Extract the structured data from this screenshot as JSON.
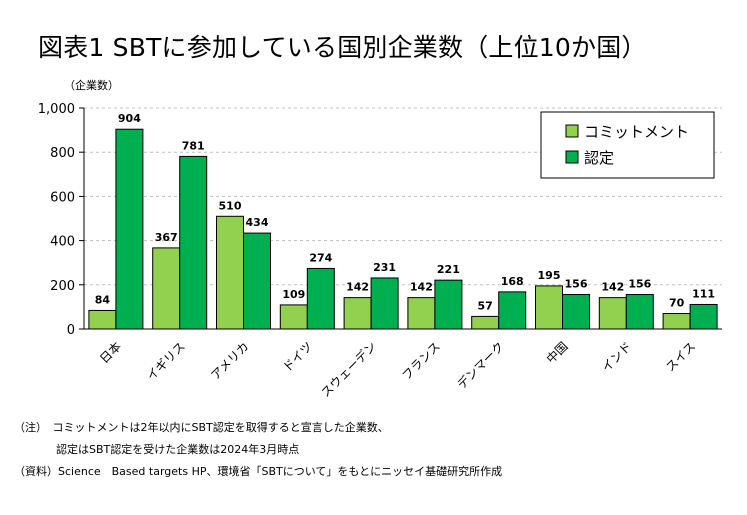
{
  "title": "図表1 SBTに参加している国別企業数（上位10か国）",
  "colors": {
    "commitment": "#92d050",
    "certified": "#00b050",
    "border": "#000000"
  },
  "chart_data": {
    "type": "bar",
    "ylabel": "（企業数）",
    "ylim": [
      0,
      1000
    ],
    "yticks": [
      0,
      200,
      400,
      600,
      800,
      1000
    ],
    "ytick_labels": [
      "0",
      "200",
      "400",
      "600",
      "800",
      "1,000"
    ],
    "grid": true,
    "legend_position": "top-right",
    "categories": [
      "日本",
      "イギリス",
      "アメリカ",
      "ドイツ",
      "スウェーデン",
      "フランス",
      "デンマーク",
      "中国",
      "インド",
      "スイス"
    ],
    "series": [
      {
        "name": "コミットメント",
        "values": [
          84,
          367,
          510,
          109,
          142,
          142,
          57,
          195,
          142,
          70
        ]
      },
      {
        "name": "認定",
        "values": [
          904,
          781,
          434,
          274,
          231,
          221,
          168,
          156,
          156,
          111
        ]
      }
    ]
  },
  "notes": [
    "（注）　コミットメントは2年以内にSBT認定を取得すると宣言した企業数、",
    "認定はSBT認定を受けた企業数は2024年3月時点",
    "（資料）Science　Based targets HP、環境省「SBTについて」をもとにニッセイ基礎研究所作成"
  ]
}
